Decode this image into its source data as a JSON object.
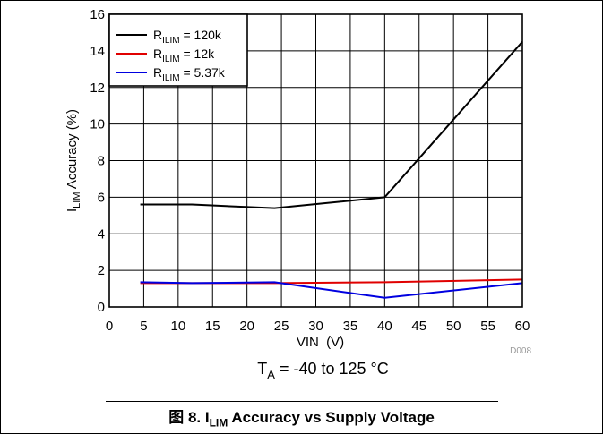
{
  "chart_data": {
    "type": "line",
    "xlabel": "VIN  (V)",
    "ylabel": "I_LIM Accuracy (%)",
    "ylabel_main": "I",
    "ylabel_sub": "LIM",
    "ylabel_rest": " Accuracy (%)",
    "xlim": [
      0,
      60
    ],
    "ylim": [
      0,
      16
    ],
    "x_ticks": [
      0,
      5,
      10,
      15,
      20,
      25,
      30,
      35,
      40,
      45,
      50,
      55,
      60
    ],
    "y_ticks": [
      0,
      2,
      4,
      6,
      8,
      10,
      12,
      14,
      16
    ],
    "grid": true,
    "legend_position": "top-left",
    "series": [
      {
        "name": "R_ILIM = 120k",
        "name_main": "R",
        "name_sub": "ILIM",
        "name_rest": " = 120k",
        "color": "#000000",
        "x": [
          4.5,
          12,
          24,
          40,
          60
        ],
        "y": [
          5.6,
          5.6,
          5.4,
          6.0,
          14.5
        ]
      },
      {
        "name": "R_ILIM = 12k",
        "name_main": "R",
        "name_sub": "ILIM",
        "name_rest": " = 12k",
        "color": "#e00000",
        "x": [
          4.5,
          12,
          24,
          40,
          60
        ],
        "y": [
          1.3,
          1.3,
          1.3,
          1.35,
          1.5
        ]
      },
      {
        "name": "R_ILIM = 5.37k",
        "name_main": "R",
        "name_sub": "ILIM",
        "name_rest": " = 5.37k",
        "color": "#0000e0",
        "x": [
          4.5,
          12,
          24,
          40,
          60
        ],
        "y": [
          1.35,
          1.3,
          1.35,
          0.5,
          1.3
        ]
      }
    ],
    "code": "D008",
    "condition_main": "T",
    "condition_sub": "A",
    "condition_rest": " = -40 to 125 °C"
  },
  "caption": {
    "prefix": "图 8. I",
    "sub": "LIM",
    "rest": " Accuracy vs Supply Voltage"
  }
}
